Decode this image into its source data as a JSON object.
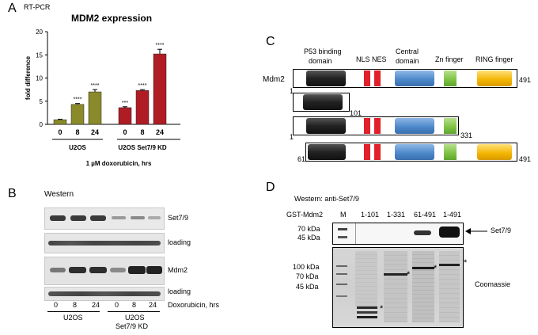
{
  "panelA": {
    "letter": "A",
    "method": "RT-PCR",
    "chart_data": {
      "type": "bar",
      "title": "MDM2 expression",
      "ylabel": "fold difference",
      "xlabel": "1 µM doxorubicin, hrs",
      "ylim": [
        0,
        20
      ],
      "yticks": [
        "0",
        "5",
        "10",
        "15",
        "20"
      ],
      "groups": [
        {
          "name": "U2OS",
          "color": "#8b8a2a",
          "categories": [
            "0",
            "8",
            "24"
          ],
          "values": [
            1.0,
            4.3,
            7.0
          ],
          "errors": [
            0.1,
            0.2,
            0.5
          ],
          "significance": [
            "",
            "****",
            "****"
          ]
        },
        {
          "name": "U2OS Set7/9 KD",
          "color": "#b01c24",
          "categories": [
            "0",
            "8",
            "24"
          ],
          "values": [
            3.6,
            7.3,
            15.2
          ],
          "errors": [
            0.2,
            0.2,
            1.0
          ],
          "significance": [
            "***",
            "****",
            "****"
          ]
        }
      ]
    }
  },
  "panelB": {
    "letter": "B",
    "title": "Western",
    "row_labels": [
      "Set7/9",
      "loading",
      "Mdm2",
      "loading"
    ],
    "lane_labels": [
      "0",
      "8",
      "24",
      "0",
      "8",
      "24"
    ],
    "x_title": "Doxorubicin, hrs",
    "group_labels": [
      "U2OS",
      "U2OS",
      "Set7/9 KD"
    ]
  },
  "panelC": {
    "letter": "C",
    "protein": "Mdm2",
    "domain_labels": [
      "P53 binding",
      "domain",
      "NLS NES",
      "Central",
      "domain",
      "Zn finger",
      "RING finger"
    ],
    "constructs": [
      {
        "start": "1",
        "end": "491"
      },
      {
        "start": "",
        "end": "101"
      },
      {
        "start": "1",
        "end": "331"
      },
      {
        "start": "61",
        "end": "491"
      }
    ],
    "colors": {
      "p53": "#2b2b2b",
      "nls": "#e0202a",
      "central": "#4a86c8",
      "zn": "#7cc142",
      "ring": "#f2b400"
    }
  },
  "panelD": {
    "letter": "D",
    "title": "Western: anti-Set7/9",
    "lane_header_label": "GST-Mdm2",
    "lanes": [
      "M",
      "1-101",
      "1-331",
      "61-491",
      "1-491"
    ],
    "western_markers": [
      "70 kDa",
      "45 kDa"
    ],
    "western_label": "Set7/9",
    "coomassie_markers": [
      "100 kDa",
      "70 kDa",
      "45 kDa"
    ],
    "coomassie_label": "Coomassie",
    "asterisk": "*"
  }
}
